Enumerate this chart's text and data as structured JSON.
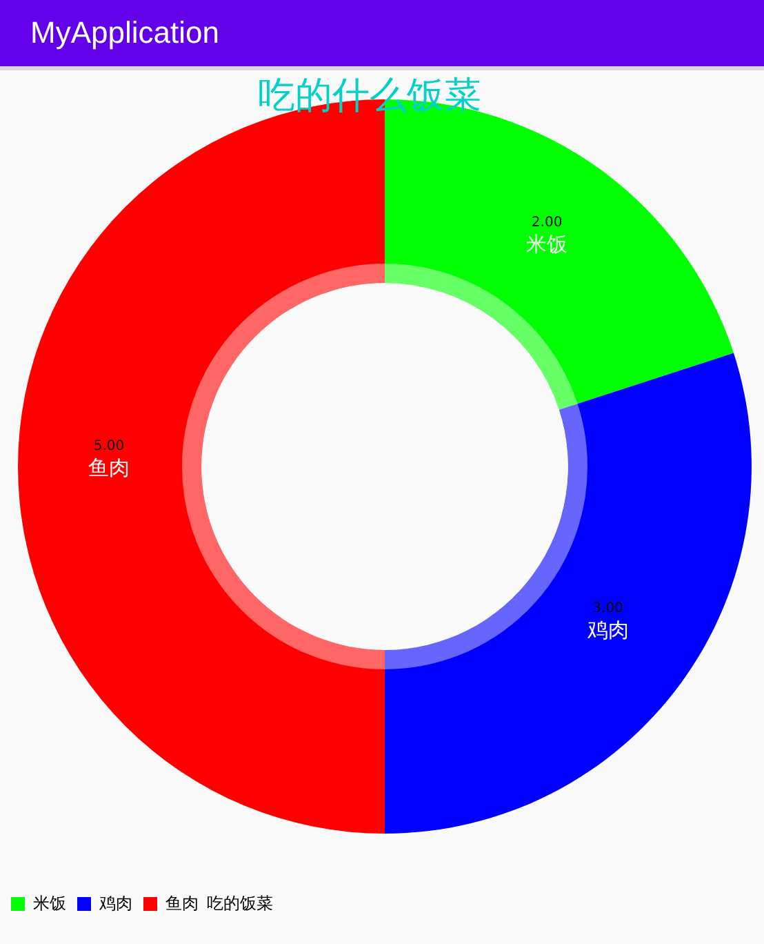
{
  "chart_data": {
    "type": "donut",
    "title": "吃的什么饭菜",
    "annotations": [
      "MyApplication"
    ],
    "categories": [
      "米饭",
      "鸡肉",
      "鱼肉"
    ],
    "values": [
      2,
      3,
      5
    ],
    "value_labels": [
      "2.00",
      "3.00",
      "5.00"
    ],
    "colors": [
      "#00ff00",
      "#0000ff",
      "#ff0000"
    ],
    "legend": "bottom left",
    "legend_title": "吃的饭菜"
  }
}
